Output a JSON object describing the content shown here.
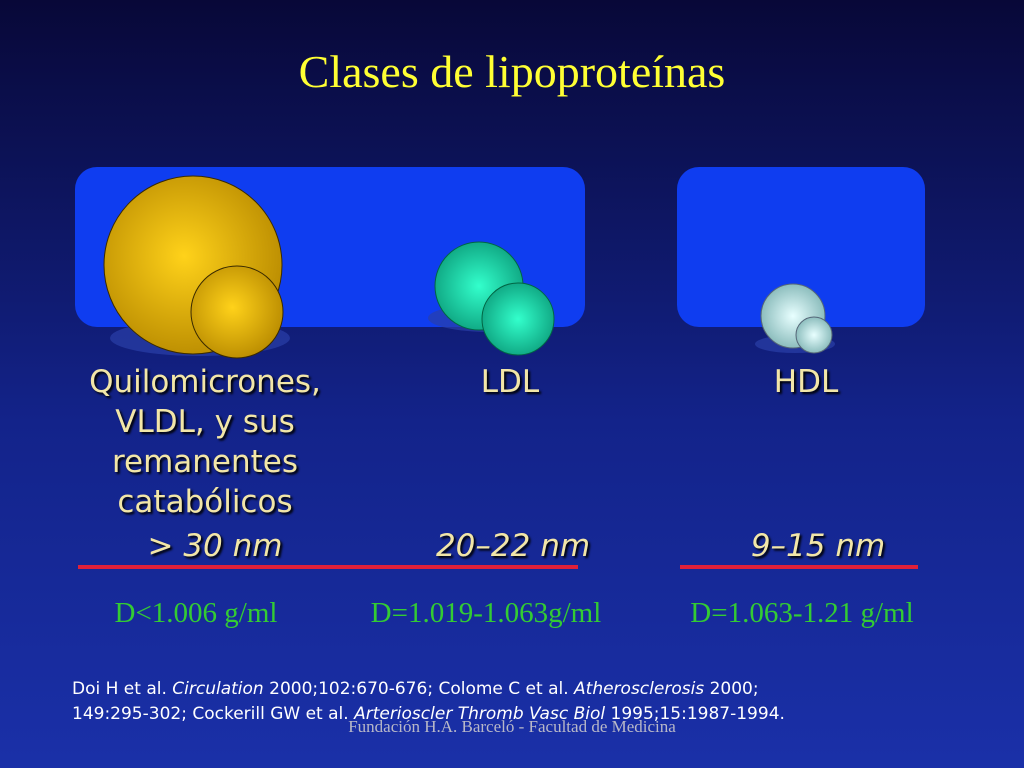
{
  "title": "Clases de lipoproteínas",
  "groups": [
    {
      "label": [
        "Quilomicrones,",
        "VLDL, y sus",
        "remanentes",
        "catabólicos"
      ],
      "size": "> 30 nm",
      "density": "D<1.006 g/ml"
    },
    {
      "label": [
        "LDL"
      ],
      "size": "20–22 nm",
      "density": "D=1.019-1.063g/ml"
    },
    {
      "label": [
        "HDL"
      ],
      "size": "9–15 nm",
      "density": "D=1.063-1.21 g/ml"
    }
  ],
  "reference": {
    "lines": [
      [
        {
          "text": "Doi H et al. ",
          "italic": false
        },
        {
          "text": "Circulation",
          "italic": true
        },
        {
          "text": " 2000;102:670-676; Colome C et al. ",
          "italic": false
        },
        {
          "text": "Atherosclerosis",
          "italic": true
        },
        {
          "text": " 2000;",
          "italic": false
        }
      ],
      [
        {
          "text": "149:295-302; Cockerill GW et al. ",
          "italic": false
        },
        {
          "text": "Arterioscler Thromb Vasc Biol",
          "italic": true
        },
        {
          "text": " 1995;15:1987-1994.",
          "italic": false
        }
      ]
    ]
  },
  "footer": "Fundación H.A. Barceló - Facultad de Medicina"
}
